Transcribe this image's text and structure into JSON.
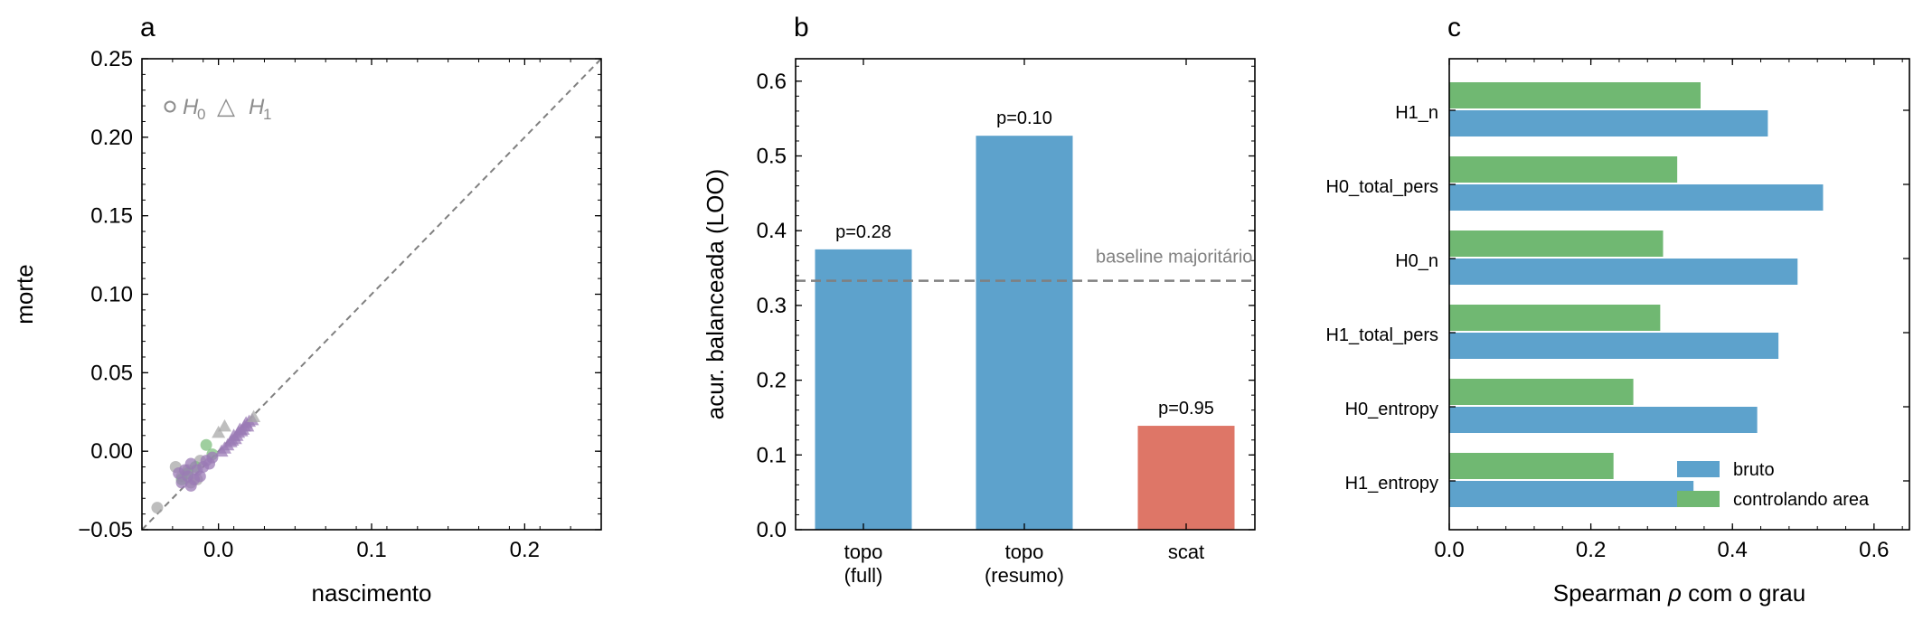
{
  "chart_data": [
    {
      "type": "scatter",
      "panel_label": "a",
      "xlabel": "nascimento",
      "ylabel": "morte",
      "xlim": [
        -0.05,
        0.25
      ],
      "ylim": [
        -0.05,
        0.25
      ],
      "xticks": [
        0.0,
        0.1,
        0.2
      ],
      "xtick_labels": [
        "0.0",
        "0.1",
        "0.2"
      ],
      "yticks": [
        -0.05,
        0.0,
        0.05,
        0.1,
        0.15,
        0.2,
        0.25
      ],
      "ytick_labels": [
        "−0.05",
        "0.00",
        "0.05",
        "0.10",
        "0.15",
        "0.20",
        "0.25"
      ],
      "diagonal": true,
      "legend": {
        "placement": "top-left",
        "circle_glyph": "o",
        "triangle_glyph": "△",
        "h0_label": "H",
        "h0_sub": "0",
        "h1_label": "H",
        "h1_sub": "1",
        "color": "#8c8c8c"
      },
      "colors": {
        "gray": "#a8a8a8",
        "purple": "#9b7bb5",
        "green": "#7fbf7f"
      },
      "series": [
        {
          "marker": "circle",
          "color": "gray",
          "points": [
            [
              -0.04,
              -0.036
            ],
            [
              -0.028,
              -0.01
            ],
            [
              -0.024,
              -0.016
            ],
            [
              -0.02,
              -0.012
            ],
            [
              -0.018,
              -0.02
            ],
            [
              -0.012,
              -0.006
            ],
            [
              -0.014,
              -0.018
            ]
          ]
        },
        {
          "marker": "circle",
          "color": "green",
          "points": [
            [
              -0.008,
              0.004
            ],
            [
              -0.004,
              -0.002
            ],
            [
              -0.02,
              -0.014
            ],
            [
              -0.015,
              -0.01
            ],
            [
              -0.024,
              -0.018
            ]
          ]
        },
        {
          "marker": "circle",
          "color": "purple",
          "points": [
            [
              -0.026,
              -0.014
            ],
            [
              -0.024,
              -0.02
            ],
            [
              -0.022,
              -0.012
            ],
            [
              -0.02,
              -0.016
            ],
            [
              -0.018,
              -0.008
            ],
            [
              -0.016,
              -0.018
            ],
            [
              -0.014,
              -0.012
            ],
            [
              -0.012,
              -0.016
            ],
            [
              -0.01,
              -0.01
            ],
            [
              -0.008,
              -0.006
            ],
            [
              -0.006,
              -0.008
            ],
            [
              -0.004,
              -0.004
            ],
            [
              -0.018,
              -0.022
            ]
          ]
        },
        {
          "marker": "triangle",
          "color": "purple",
          "points": [
            [
              0.002,
              0.0
            ],
            [
              0.004,
              0.002
            ],
            [
              0.006,
              0.004
            ],
            [
              0.008,
              0.006
            ],
            [
              0.009,
              0.007
            ],
            [
              0.01,
              0.01
            ],
            [
              0.012,
              0.01
            ],
            [
              0.013,
              0.012
            ],
            [
              0.014,
              0.014
            ],
            [
              0.016,
              0.014
            ],
            [
              0.017,
              0.016
            ],
            [
              0.018,
              0.018
            ],
            [
              0.02,
              0.019
            ],
            [
              0.022,
              0.02
            ],
            [
              0.011,
              0.008
            ],
            [
              0.015,
              0.013
            ],
            [
              0.019,
              0.016
            ]
          ]
        },
        {
          "marker": "triangle",
          "color": "gray",
          "points": [
            [
              0.0,
              0.012
            ],
            [
              0.004,
              0.016
            ],
            [
              0.023,
              0.022
            ]
          ]
        }
      ]
    },
    {
      "type": "bar",
      "panel_label": "b",
      "ylabel": "acur. balanceada (LOO)",
      "ylim": [
        0.0,
        0.63
      ],
      "yticks": [
        0.0,
        0.1,
        0.2,
        0.3,
        0.4,
        0.5,
        0.6
      ],
      "ytick_labels": [
        "0.0",
        "0.1",
        "0.2",
        "0.3",
        "0.4",
        "0.5",
        "0.6"
      ],
      "categories": [
        [
          "topo",
          "(full)"
        ],
        [
          "topo",
          "(resumo)"
        ],
        [
          "scat",
          ""
        ]
      ],
      "values": [
        0.375,
        0.527,
        0.139
      ],
      "bar_labels": [
        "p=0.28",
        "p=0.10",
        "p=0.95"
      ],
      "bar_colors": [
        "#5da2cc",
        "#5da2cc",
        "#de7667"
      ],
      "baseline": {
        "value": 0.333,
        "label": "baseline majoritário",
        "color": "#808080"
      }
    },
    {
      "type": "bar",
      "orientation": "horizontal",
      "panel_label": "c",
      "xlabel_prefix": "Spearman ",
      "xlabel_symbol": "ρ",
      "xlabel_suffix": " com o grau",
      "xlim": [
        0.0,
        0.65
      ],
      "xticks": [
        0.0,
        0.2,
        0.4,
        0.6
      ],
      "xtick_labels": [
        "0.0",
        "0.2",
        "0.4",
        "0.6"
      ],
      "categories": [
        "H1_entropy",
        "H0_entropy",
        "H1_total_pers",
        "H0_n",
        "H0_total_pers",
        "H1_n"
      ],
      "series": [
        {
          "name": "bruto",
          "color": "#5da2cc",
          "values": [
            0.345,
            0.435,
            0.465,
            0.492,
            0.528,
            0.45
          ]
        },
        {
          "name": "controlando area",
          "color": "#70b872",
          "values": [
            0.232,
            0.26,
            0.298,
            0.302,
            0.322,
            0.355
          ]
        }
      ],
      "legend": {
        "placement": "lower-right"
      }
    }
  ]
}
